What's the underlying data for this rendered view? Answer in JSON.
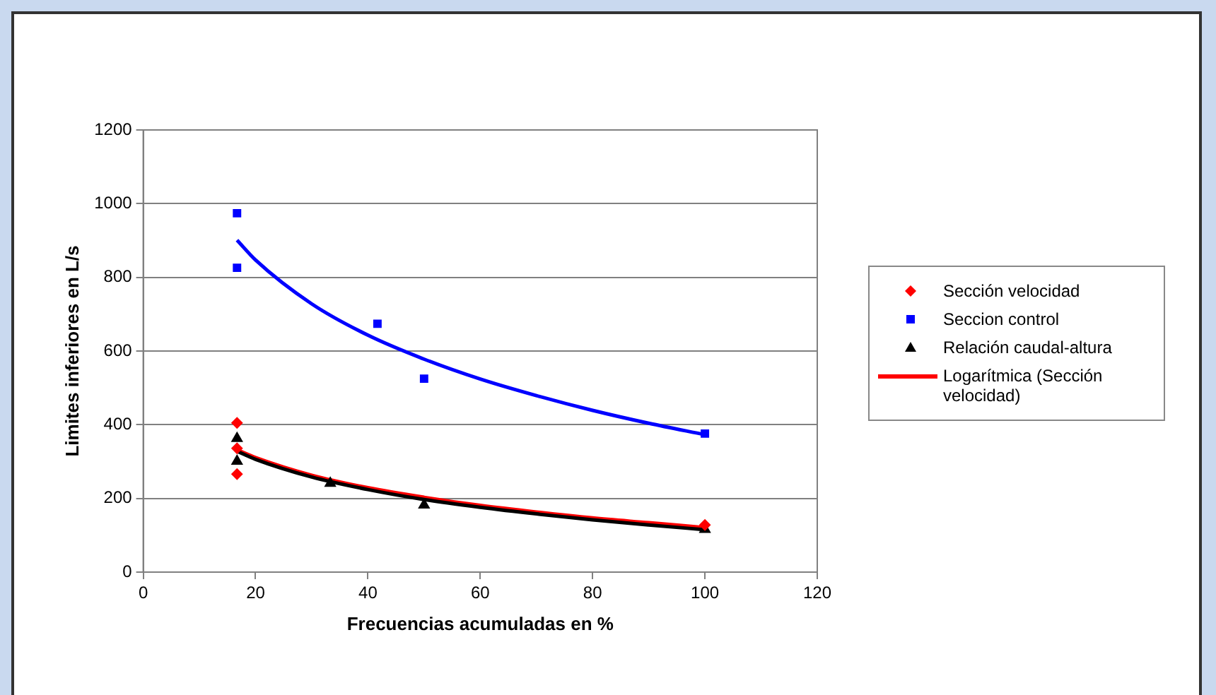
{
  "chart_data": {
    "type": "scatter",
    "xlabel": "Frecuencias acumuladas en %",
    "ylabel": "Limites inferiores en L/s",
    "xlim": [
      0,
      120
    ],
    "xticks": [
      0,
      20,
      40,
      60,
      80,
      100,
      120
    ],
    "ylim": [
      0,
      1200
    ],
    "yticks": [
      0,
      200,
      400,
      600,
      800,
      1000,
      1200
    ],
    "grid": "y",
    "legend": "right",
    "series": [
      {
        "name": "Sección velocidad",
        "marker": "diamond",
        "color": "#ff0000",
        "x": [
          16.7,
          16.7,
          16.7,
          100
        ],
        "values": [
          405,
          336,
          266,
          128
        ]
      },
      {
        "name": "Seccion control",
        "marker": "square",
        "color": "#0000ff",
        "x": [
          16.7,
          16.7,
          41.7,
          50,
          100
        ],
        "values": [
          974,
          826,
          674,
          525,
          376
        ]
      },
      {
        "name": "Relación caudal-altura",
        "marker": "triangle",
        "color": "#000000",
        "x": [
          16.7,
          16.7,
          33.3,
          50,
          100
        ],
        "values": [
          363,
          301,
          241,
          182,
          116
        ]
      },
      {
        "type": "line",
        "marker": "none",
        "color": "#0000ff",
        "x": [
          16.7,
          20,
          30,
          40,
          50,
          60,
          70,
          80,
          90,
          100
        ],
        "values": [
          901,
          847,
          728,
          643,
          578,
          524,
          479,
          439,
          404,
          373
        ]
      },
      {
        "type": "line",
        "marker": "none",
        "color": "#000000",
        "x": [
          16.7,
          20,
          30,
          40,
          50,
          60,
          70,
          80,
          90,
          100
        ],
        "values": [
          328,
          306,
          258,
          224,
          197,
          176,
          158,
          142,
          128,
          115
        ]
      },
      {
        "name": "Logarítmica (Sección velocidad)",
        "type": "line",
        "marker": "none",
        "color": "#ff0000",
        "x": [
          16.7,
          20,
          30,
          40,
          50,
          60,
          70,
          80,
          90,
          100
        ],
        "values": [
          332,
          311,
          263,
          229,
          203,
          181,
          163,
          147,
          134,
          121
        ]
      }
    ]
  }
}
